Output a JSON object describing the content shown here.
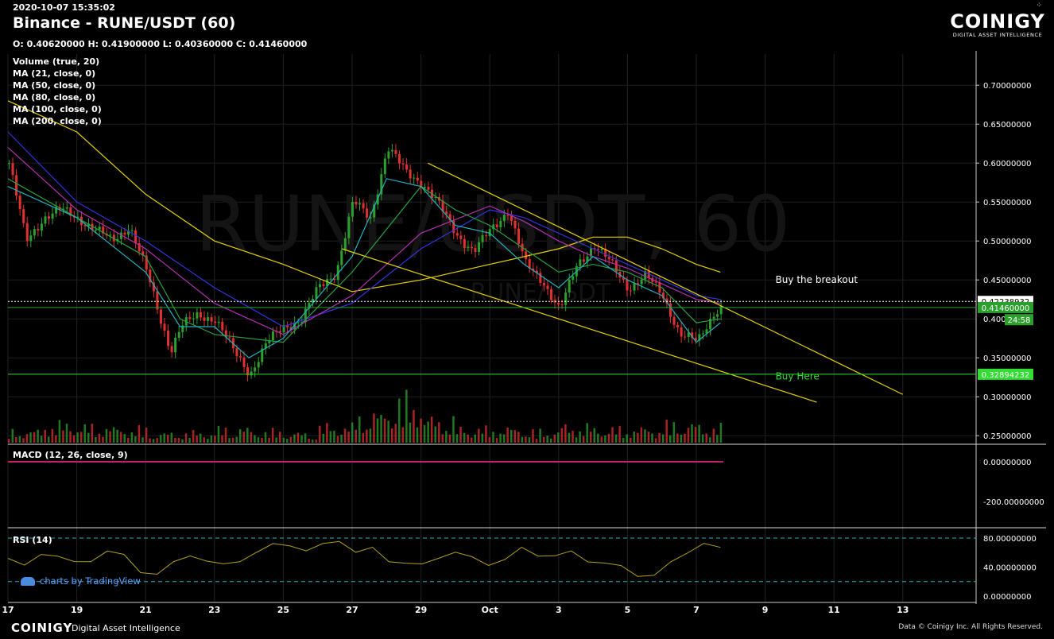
{
  "header": {
    "timestamp": "2020-10-07 15:35:02",
    "title": "Binance - RUNE/USDT (60)",
    "ohlc": "O: 0.40620000 H: 0.41900000 L: 0.40360000 C: 0.41460000"
  },
  "brand": {
    "name": "COINIGY",
    "tagline": "DIGITAL ASSET INTELLIGENCE"
  },
  "studies": [
    "Volume (true, 20)",
    "MA (21, close, 0)",
    "MA (50, close, 0)",
    "MA (80, close, 0)",
    "MA (100, close, 0)",
    "MA (200, close, 0)"
  ],
  "watermark": "RUNE/USDT, 60",
  "watermark_sub": "RUNE/USDT",
  "panels": {
    "macd": "MACD (12, 26, close, 9)",
    "rsi": "RSI (14)"
  },
  "footer": {
    "logo": "COINIGY",
    "sub": "Digital Asset Intelligence",
    "right": "Data © Coinigy Inc.  All Rights Reserved.",
    "tv": "charts by TradingView"
  },
  "colors": {
    "up": "#2ca02c",
    "down": "#e03030",
    "trend": "#e6d200",
    "support": "#33dd33"
  },
  "chart_data": {
    "type": "candlestick",
    "x_ticks": [
      "17",
      "19",
      "21",
      "23",
      "25",
      "27",
      "29",
      "Oct",
      "3",
      "5",
      "7",
      "9",
      "11",
      "13"
    ],
    "price_ticks": [
      "0.70000000",
      "0.65000000",
      "0.60000000",
      "0.55000000",
      "0.50000000",
      "0.45000000",
      "0.40000000",
      "0.35000000",
      "0.30000000",
      "0.25000000"
    ],
    "price_range": [
      0.24,
      0.74
    ],
    "macd_ticks": [
      "0.00000000",
      "-200.00000000"
    ],
    "rsi_ticks": [
      "80.00000000",
      "40.00000000",
      "0.00000000"
    ],
    "price_path": [
      [
        0,
        0.6
      ],
      [
        0.5,
        0.5
      ],
      [
        1,
        0.53
      ],
      [
        1.5,
        0.54
      ],
      [
        2,
        0.53
      ],
      [
        2.5,
        0.515
      ],
      [
        3,
        0.5
      ],
      [
        3.5,
        0.52
      ],
      [
        4,
        0.46
      ],
      [
        4.4,
        0.4
      ],
      [
        4.7,
        0.36
      ],
      [
        5,
        0.39
      ],
      [
        5.5,
        0.405
      ],
      [
        6,
        0.4
      ],
      [
        6.5,
        0.36
      ],
      [
        7,
        0.33
      ],
      [
        7.5,
        0.37
      ],
      [
        8,
        0.39
      ],
      [
        8.5,
        0.4
      ],
      [
        9,
        0.44
      ],
      [
        9.5,
        0.46
      ],
      [
        10,
        0.55
      ],
      [
        10.5,
        0.53
      ],
      [
        11,
        0.62
      ],
      [
        11.5,
        0.59
      ],
      [
        12,
        0.575
      ],
      [
        12.5,
        0.545
      ],
      [
        13,
        0.51
      ],
      [
        13.5,
        0.485
      ],
      [
        14,
        0.515
      ],
      [
        14.5,
        0.54
      ],
      [
        15,
        0.47
      ],
      [
        15.5,
        0.45
      ],
      [
        16,
        0.41
      ],
      [
        16.5,
        0.47
      ],
      [
        17,
        0.495
      ],
      [
        17.5,
        0.47
      ],
      [
        18,
        0.44
      ],
      [
        18.5,
        0.455
      ],
      [
        19,
        0.43
      ],
      [
        19.5,
        0.38
      ],
      [
        20,
        0.37
      ],
      [
        20.5,
        0.41
      ],
      [
        20.7,
        0.415
      ]
    ],
    "ma_lines": [
      {
        "color": "#e6d200",
        "points": [
          [
            0,
            0.68
          ],
          [
            2,
            0.64
          ],
          [
            4,
            0.56
          ],
          [
            6,
            0.5
          ],
          [
            8,
            0.47
          ],
          [
            10,
            0.435
          ],
          [
            12,
            0.45
          ],
          [
            14,
            0.47
          ],
          [
            16,
            0.49
          ],
          [
            17,
            0.505
          ],
          [
            18,
            0.505
          ],
          [
            19,
            0.49
          ],
          [
            20,
            0.47
          ],
          [
            20.7,
            0.46
          ]
        ]
      },
      {
        "color": "#3333dd",
        "points": [
          [
            0,
            0.64
          ],
          [
            2,
            0.55
          ],
          [
            4,
            0.5
          ],
          [
            6,
            0.44
          ],
          [
            8,
            0.39
          ],
          [
            10,
            0.42
          ],
          [
            12,
            0.49
          ],
          [
            14,
            0.54
          ],
          [
            15,
            0.53
          ],
          [
            16,
            0.51
          ],
          [
            17,
            0.49
          ],
          [
            18,
            0.47
          ],
          [
            19,
            0.45
          ],
          [
            20,
            0.43
          ],
          [
            20.7,
            0.425
          ]
        ]
      },
      {
        "color": "#b030b0",
        "points": [
          [
            0,
            0.62
          ],
          [
            2,
            0.54
          ],
          [
            4,
            0.49
          ],
          [
            6,
            0.42
          ],
          [
            8,
            0.38
          ],
          [
            10,
            0.43
          ],
          [
            12,
            0.51
          ],
          [
            14,
            0.545
          ],
          [
            15,
            0.525
          ],
          [
            16,
            0.5
          ],
          [
            17,
            0.48
          ],
          [
            18,
            0.465
          ],
          [
            19,
            0.445
          ],
          [
            20,
            0.425
          ],
          [
            20.7,
            0.42
          ]
        ]
      },
      {
        "color": "#2aa040",
        "points": [
          [
            0,
            0.58
          ],
          [
            2,
            0.53
          ],
          [
            4,
            0.48
          ],
          [
            5,
            0.4
          ],
          [
            6,
            0.38
          ],
          [
            8,
            0.37
          ],
          [
            10,
            0.46
          ],
          [
            12,
            0.57
          ],
          [
            13,
            0.54
          ],
          [
            14,
            0.52
          ],
          [
            15,
            0.49
          ],
          [
            16,
            0.46
          ],
          [
            17,
            0.47
          ],
          [
            18,
            0.46
          ],
          [
            19,
            0.44
          ],
          [
            20,
            0.395
          ],
          [
            20.7,
            0.4
          ]
        ]
      },
      {
        "color": "#20b0c0",
        "points": [
          [
            0,
            0.57
          ],
          [
            2,
            0.53
          ],
          [
            4,
            0.46
          ],
          [
            5,
            0.39
          ],
          [
            6,
            0.39
          ],
          [
            7,
            0.35
          ],
          [
            8,
            0.375
          ],
          [
            10,
            0.48
          ],
          [
            11,
            0.58
          ],
          [
            12,
            0.57
          ],
          [
            13,
            0.52
          ],
          [
            14,
            0.51
          ],
          [
            15,
            0.47
          ],
          [
            16,
            0.44
          ],
          [
            17,
            0.48
          ],
          [
            18,
            0.45
          ],
          [
            19,
            0.43
          ],
          [
            20,
            0.37
          ],
          [
            20.7,
            0.395
          ]
        ]
      }
    ],
    "volume": [
      0.25,
      0.4,
      0.35,
      0.3,
      0.2,
      0.22,
      0.3,
      0.25,
      0.2,
      0.35,
      0.6,
      0.9,
      0.5,
      0.3,
      0.3,
      0.25,
      0.35,
      0.3,
      0.3,
      0.4,
      0.35,
      0.5,
      0.4,
      0.6,
      0.4,
      0.3,
      0.3,
      0.35,
      0.25,
      0.3,
      0.3,
      0.25,
      0.3,
      0.4,
      0.3,
      0.25,
      0.2,
      0.3,
      0.25,
      0.3,
      0.65,
      0.5,
      0.7
    ],
    "rsi": [
      52,
      40,
      60,
      55,
      45,
      50,
      62,
      55,
      35,
      30,
      45,
      58,
      48,
      42,
      50,
      60,
      70,
      72,
      62,
      70,
      78,
      60,
      65,
      50,
      45,
      42,
      55,
      60,
      52,
      45,
      50,
      65,
      58,
      55,
      60,
      50,
      45,
      40,
      30,
      28,
      45,
      62,
      72,
      65
    ],
    "trendlines": [
      {
        "from": [
          12.2,
          0.6
        ],
        "to": [
          26.0,
          0.303
        ]
      },
      {
        "from": [
          9.7,
          0.49
        ],
        "to": [
          23.5,
          0.293
        ]
      }
    ],
    "annotations": [
      {
        "text": "Buy the breakout",
        "x": 22.3,
        "y": 0.446
      },
      {
        "text": "Buy Here",
        "x": 22.3,
        "y": 0.322
      }
    ],
    "horizontal_lines": [
      {
        "label": "0.42238932",
        "value": 0.4224,
        "style": "dashed",
        "color": "#ffffff"
      },
      {
        "label": "0.41460000",
        "value": 0.4146,
        "style": "solid",
        "color": "#2ca02c"
      },
      {
        "label": "0.32894232",
        "value": 0.3289,
        "style": "solid",
        "color": "#33dd33"
      }
    ],
    "price_badge_sub": "0.400",
    "countdown": "24:58"
  }
}
